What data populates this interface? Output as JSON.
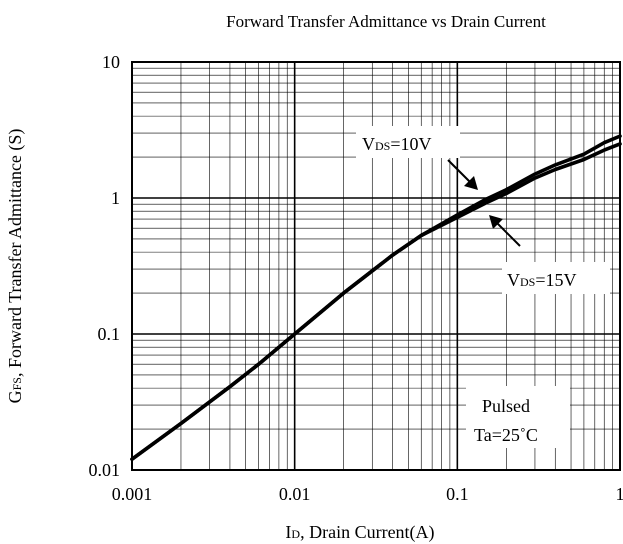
{
  "chart_data": {
    "type": "line",
    "title": "Forward Transfer Admittance vs Drain Current",
    "xlabel": "ID, Drain Current(A)",
    "ylabel": "GFS, Forward Transfer Admittance (S)",
    "x_scale": "log",
    "y_scale": "log",
    "xlim": [
      0.001,
      1
    ],
    "ylim": [
      0.01,
      10
    ],
    "x_ticks": [
      {
        "value": 0.001,
        "label": "0.001"
      },
      {
        "value": 0.01,
        "label": "0.01"
      },
      {
        "value": 0.1,
        "label": "0.1"
      },
      {
        "value": 1,
        "label": "1"
      }
    ],
    "y_ticks": [
      {
        "value": 0.01,
        "label": "0.01"
      },
      {
        "value": 0.1,
        "label": "0.1"
      },
      {
        "value": 1,
        "label": "1"
      },
      {
        "value": 10,
        "label": "10"
      }
    ],
    "grid": true,
    "series": [
      {
        "name": "VDS=10V",
        "x": [
          0.001,
          0.002,
          0.004,
          0.006,
          0.01,
          0.02,
          0.04,
          0.06,
          0.1,
          0.15,
          0.2,
          0.3,
          0.4,
          0.6,
          0.8,
          1.0
        ],
        "y": [
          0.012,
          0.022,
          0.041,
          0.06,
          0.1,
          0.2,
          0.38,
          0.53,
          0.75,
          0.98,
          1.15,
          1.5,
          1.75,
          2.1,
          2.55,
          2.85
        ]
      },
      {
        "name": "VDS=15V",
        "x": [
          0.001,
          0.002,
          0.004,
          0.006,
          0.01,
          0.02,
          0.04,
          0.06,
          0.1,
          0.15,
          0.2,
          0.3,
          0.4,
          0.6,
          0.8,
          1.0
        ],
        "y": [
          0.012,
          0.022,
          0.041,
          0.06,
          0.1,
          0.2,
          0.38,
          0.53,
          0.72,
          0.92,
          1.08,
          1.4,
          1.62,
          1.92,
          2.25,
          2.5
        ]
      }
    ],
    "annotations": {
      "vds10": {
        "main": "V",
        "sub": "DS",
        "rest": "=10V"
      },
      "vds15": {
        "main": "V",
        "sub": "DS",
        "rest": "=15V"
      },
      "pulsed": "Pulsed",
      "temp": "Ta=25˚C"
    }
  }
}
